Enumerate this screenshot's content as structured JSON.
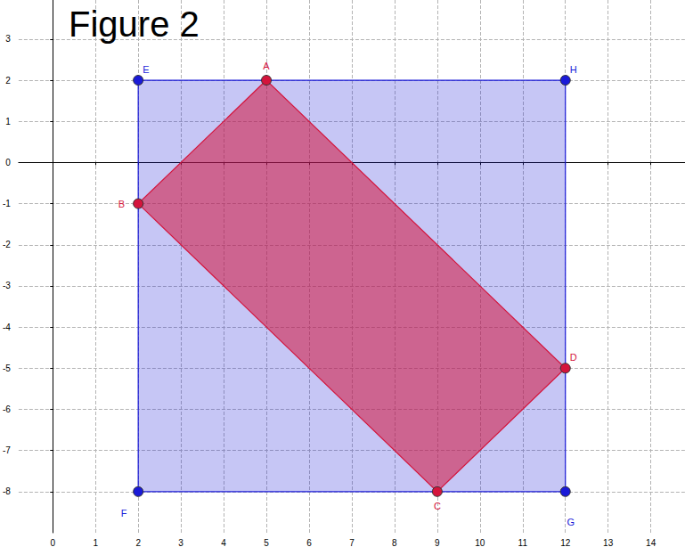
{
  "chart_data": {
    "type": "polygon",
    "title": "Figure 2",
    "xlim": [
      -0.8,
      14.8
    ],
    "ylim": [
      -9,
      3.95
    ],
    "xticks": [
      0,
      1,
      2,
      3,
      4,
      5,
      6,
      7,
      8,
      9,
      10,
      11,
      12,
      13,
      14
    ],
    "yticks": [
      -8,
      -7,
      -6,
      -5,
      -4,
      -3,
      -2,
      -1,
      0,
      1,
      2,
      3
    ],
    "grid": true,
    "series": [
      {
        "labels": [
          "E",
          "F",
          "G",
          "H"
        ],
        "x": [
          2,
          2,
          12,
          12
        ],
        "y": [
          2,
          -8,
          -8,
          2
        ],
        "color": "#1a1ad8"
      },
      {
        "labels": [
          "A",
          "B",
          "C",
          "D"
        ],
        "x": [
          5,
          2,
          9,
          12
        ],
        "y": [
          2,
          -1,
          -8,
          -5
        ],
        "color": "#d4143c"
      }
    ]
  }
}
